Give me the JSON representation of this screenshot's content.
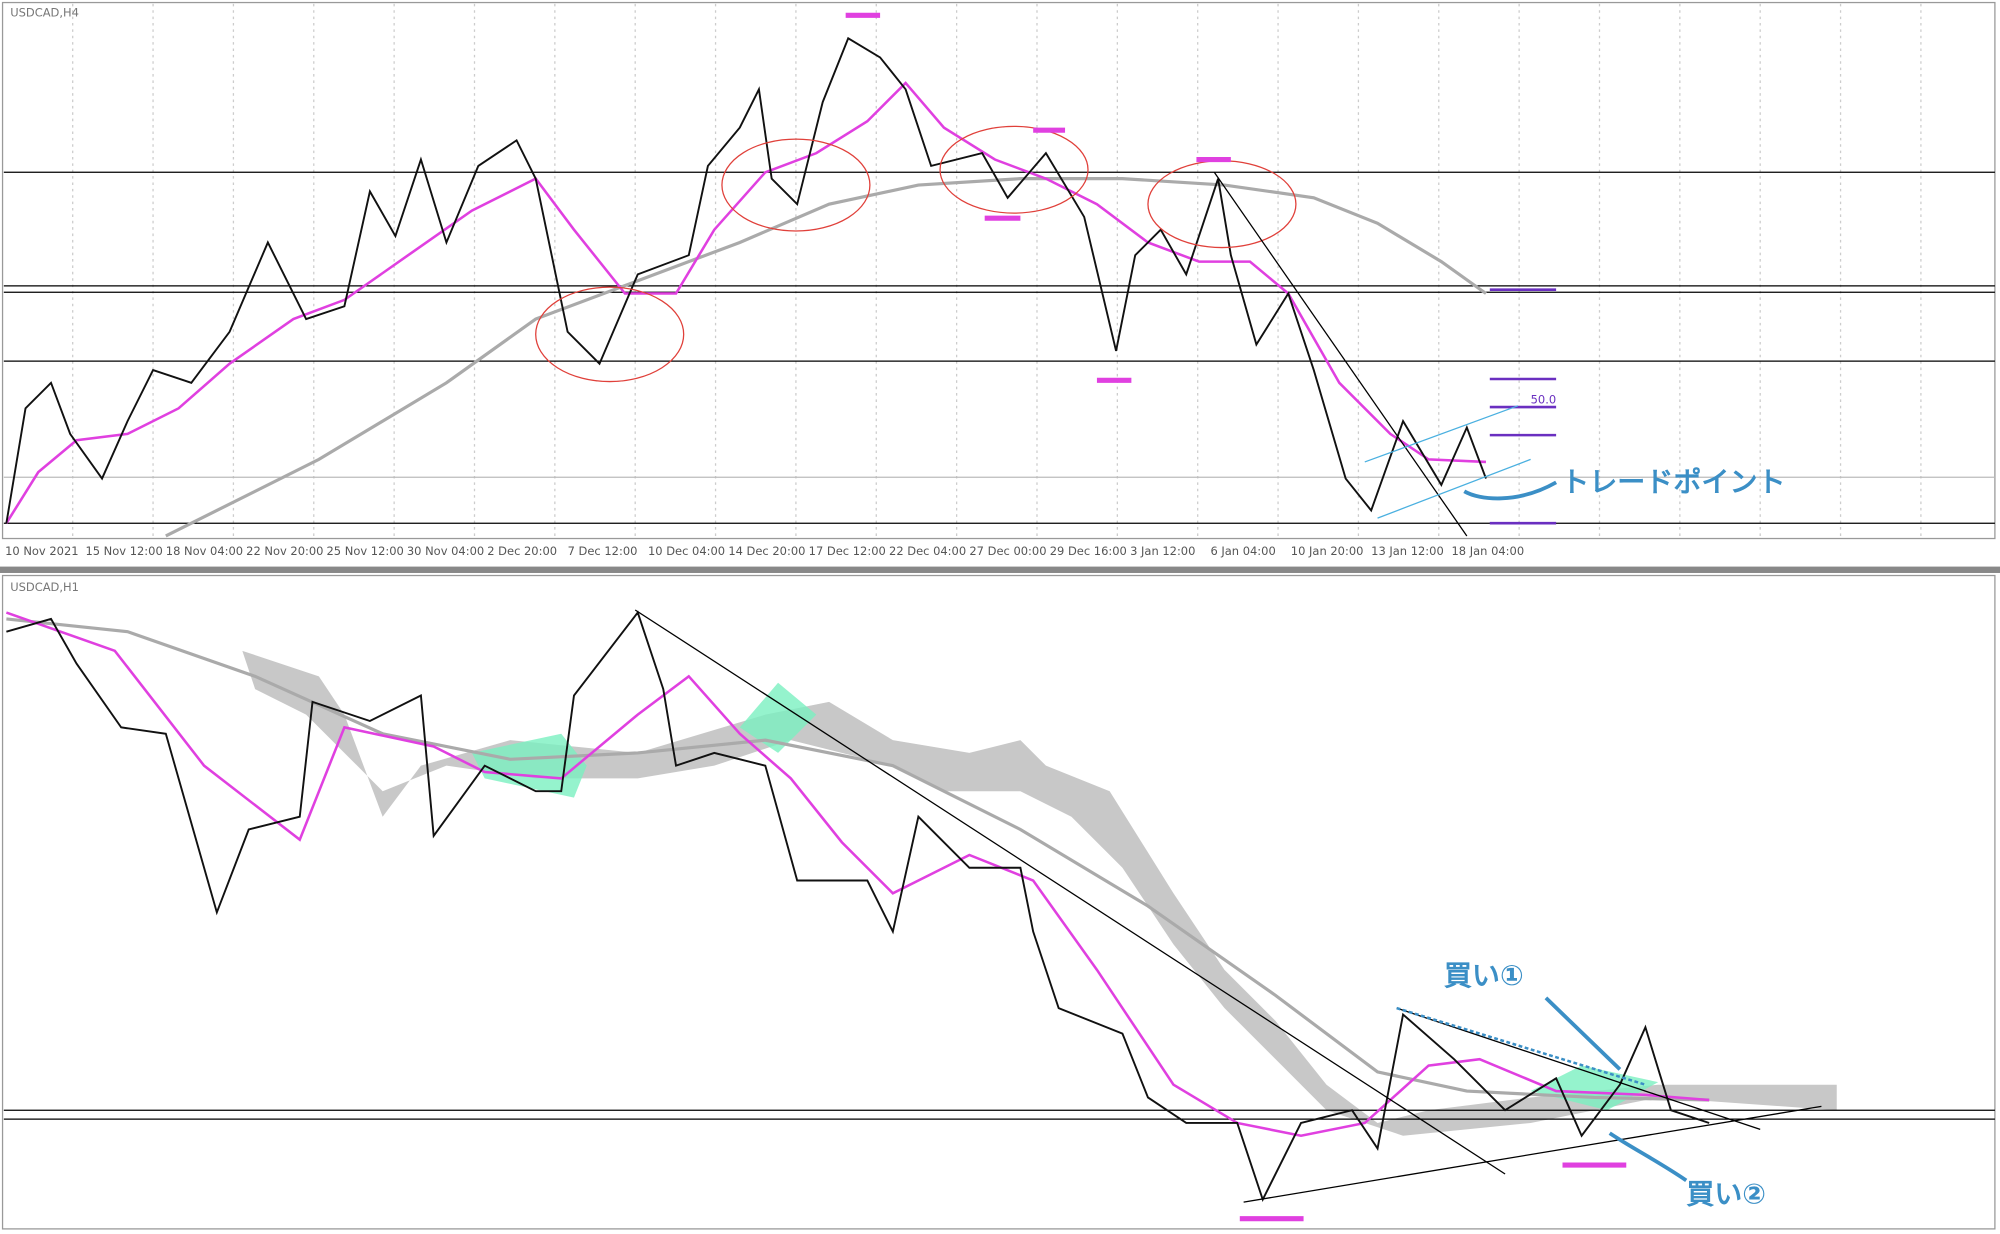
{
  "top_panel": {
    "symbol": "USDCAD,H4",
    "x_labels": [
      "10 Nov 2021",
      "15 Nov 12:00",
      "18 Nov 04:00",
      "22 Nov 20:00",
      "25 Nov 12:00",
      "30 Nov 04:00",
      "2 Dec 20:00",
      "7 Dec 12:00",
      "10 Dec 04:00",
      "14 Dec 20:00",
      "17 Dec 12:00",
      "22 Dec 04:00",
      "27 Dec 00:00",
      "29 Dec 16:00",
      "3 Jan 12:00",
      "6 Jan 04:00",
      "10 Jan 20:00",
      "13 Jan 12:00",
      "18 Jan 04:00"
    ],
    "fib_label": "50.0",
    "annotation": "トレードポイント"
  },
  "bottom_panel": {
    "symbol": "USDCAD,H1",
    "annotations": [
      "買い①",
      "買い②"
    ]
  }
}
